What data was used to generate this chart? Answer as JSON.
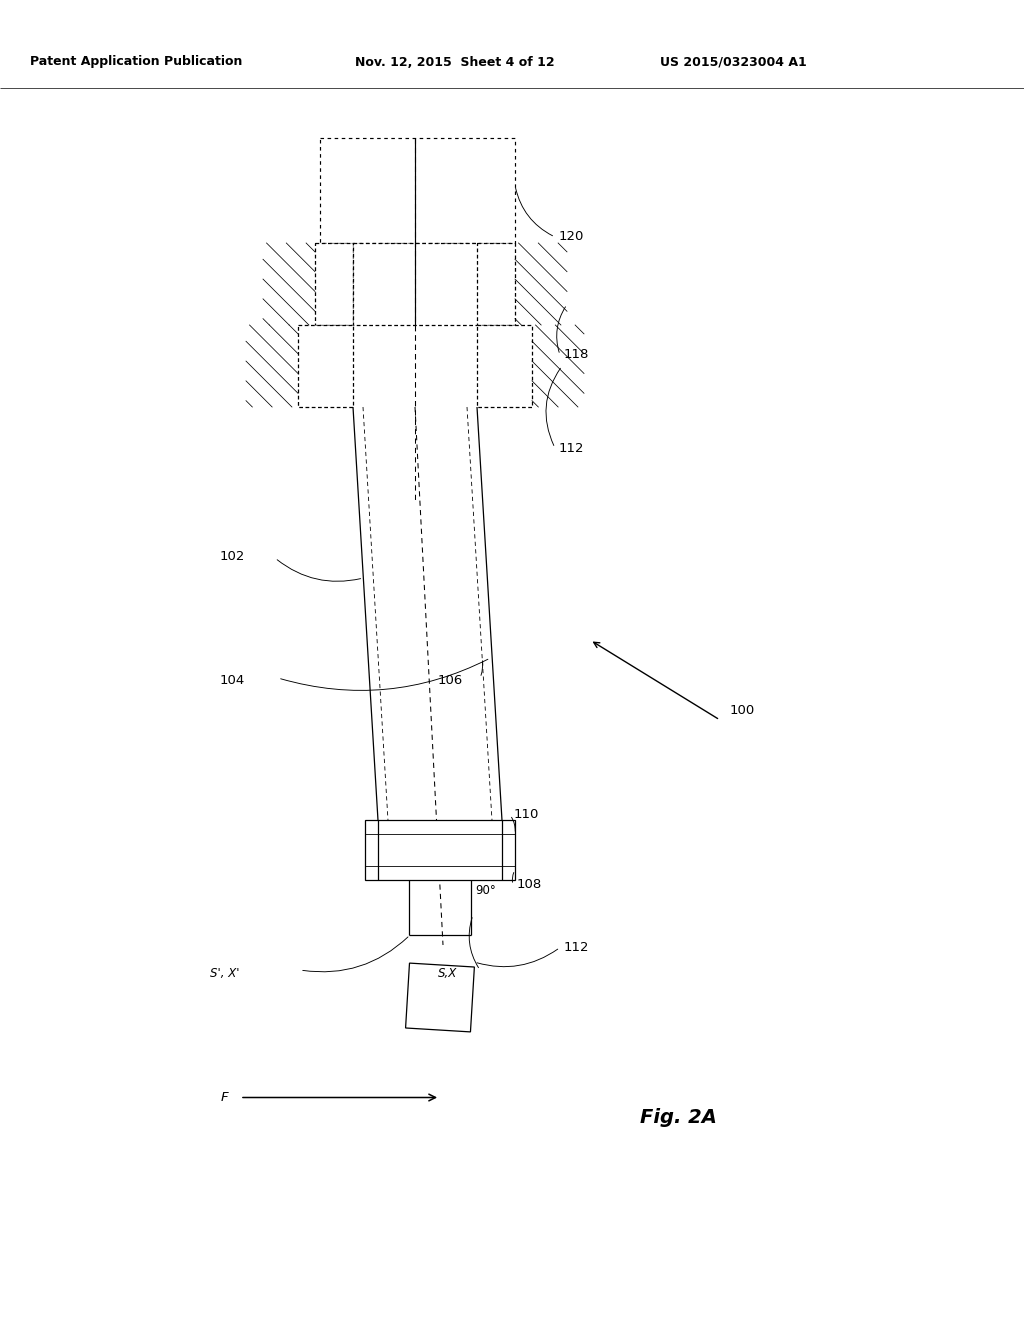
{
  "bg_color": "#ffffff",
  "col": "#000000",
  "header_left": "Patent Application Publication",
  "header_mid": "Nov. 12, 2015  Sheet 4 of 12",
  "header_right": "US 2015/0323004 A1",
  "fig_label": "Fig. 2A",
  "lw": 0.9,
  "lw_thick": 1.1,
  "lw_thin": 0.6,
  "fs": 9.5,
  "fs_fig": 14,
  "fs_hdr": 9
}
